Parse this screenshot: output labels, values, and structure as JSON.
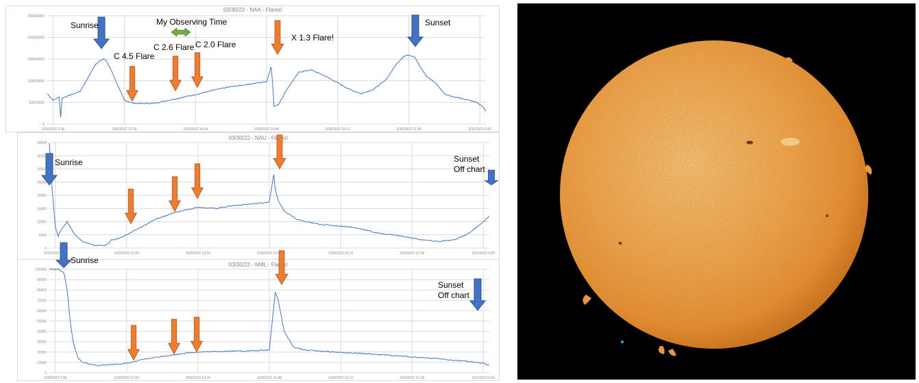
{
  "chart_data": [
    {
      "type": "line",
      "title": "03/30/22 - NAA - Flares!",
      "x_ticks": [
        "3/30/2022 9:36",
        "3/30/2022 12:00",
        "3/30/2022 14:24",
        "3/30/2022 16:48",
        "3/30/2022 19:12",
        "3/30/2022 21:36",
        "3/31/2022 0:00"
      ],
      "y_ticks": [
        "0",
        "50000000",
        "100000000",
        "150000000",
        "200000000",
        "250000000"
      ],
      "ylim": [
        0,
        250000000
      ],
      "xlim": [
        9.4,
        24.2
      ],
      "grid": true,
      "series": [
        {
          "color": "#4472c4",
          "x": [
            9.4,
            9.6,
            9.8,
            9.85,
            9.9,
            10.1,
            10.5,
            10.8,
            11.0,
            11.2,
            11.3,
            11.4,
            11.6,
            11.8,
            12.0,
            12.3,
            12.6,
            13.0,
            13.5,
            14.0,
            14.4,
            15.0,
            15.5,
            16.0,
            16.5,
            16.8,
            16.95,
            17.0,
            17.05,
            17.2,
            17.5,
            17.9,
            18.3,
            18.8,
            19.2,
            19.6,
            20.0,
            20.4,
            20.8,
            21.0,
            21.2,
            21.4,
            21.6,
            21.8,
            22.0,
            22.2,
            22.5,
            22.8,
            23.0,
            23.3,
            23.6,
            23.9,
            24.1,
            24.2
          ],
          "y": [
            70000000,
            55000000,
            62000000,
            15000000,
            60000000,
            65000000,
            75000000,
            110000000,
            135000000,
            148000000,
            150000000,
            145000000,
            118000000,
            85000000,
            55000000,
            48000000,
            47000000,
            48000000,
            55000000,
            62000000,
            68000000,
            78000000,
            85000000,
            90000000,
            95000000,
            98000000,
            132000000,
            100000000,
            40000000,
            45000000,
            82000000,
            120000000,
            125000000,
            110000000,
            95000000,
            80000000,
            70000000,
            80000000,
            100000000,
            120000000,
            140000000,
            155000000,
            160000000,
            155000000,
            130000000,
            110000000,
            95000000,
            70000000,
            65000000,
            60000000,
            55000000,
            50000000,
            40000000,
            30000000
          ]
        }
      ],
      "annotations": [
        {
          "text": "Sunrise"
        },
        {
          "text": "My Observing Time"
        },
        {
          "text": "C 4.5 Flare"
        },
        {
          "text": "C 2.6 Flare"
        },
        {
          "text": "C 2.0 Flare"
        },
        {
          "text": "X 1.3 Flare!"
        },
        {
          "text": "Sunset"
        }
      ]
    },
    {
      "type": "line",
      "title": "03/30/22 - NAU - Flares!",
      "x_ticks": [
        "3/30/2022 9:36",
        "3/30/2022 12:00",
        "3/30/2022 14:24",
        "3/30/2022 16:48",
        "3/30/2022 19:12",
        "3/30/2022 21:36",
        "3/31/2022 0:00"
      ],
      "y_ticks": [
        "0",
        "5000",
        "10000",
        "15000",
        "20000",
        "25000",
        "30000",
        "35000",
        "40000"
      ],
      "ylim": [
        0,
        40000
      ],
      "xlim": [
        9.4,
        24.2
      ],
      "grid": true,
      "series": [
        {
          "color": "#4472c4",
          "x": [
            9.4,
            9.5,
            9.6,
            9.7,
            9.8,
            10.0,
            10.2,
            10.5,
            10.9,
            11.3,
            11.5,
            11.7,
            12.0,
            12.5,
            13.0,
            13.5,
            14.0,
            14.4,
            15.0,
            15.5,
            16.0,
            16.5,
            16.8,
            16.95,
            17.0,
            17.1,
            17.3,
            17.7,
            18.0,
            18.5,
            19.0,
            19.5,
            20.0,
            20.5,
            21.0,
            21.5,
            22.0,
            22.5,
            23.0,
            23.5,
            24.0,
            24.2
          ],
          "y": [
            40000,
            22000,
            8000,
            4500,
            7000,
            10000,
            6000,
            2500,
            1000,
            1000,
            3000,
            3500,
            5000,
            8000,
            11000,
            13000,
            14500,
            15500,
            15000,
            16000,
            16500,
            17000,
            17500,
            28000,
            22000,
            18000,
            14000,
            11000,
            10000,
            9000,
            8500,
            8000,
            7000,
            5500,
            5000,
            4000,
            3000,
            2500,
            3000,
            5500,
            10000,
            12000
          ]
        }
      ],
      "annotations": [
        {
          "text": "Sunrise"
        },
        {
          "text": "Sunset Off chart"
        }
      ]
    },
    {
      "type": "line",
      "title": "03/30/22 - NML - Flares!",
      "x_ticks": [
        "3/30/2022 9:36",
        "3/30/2022 12:00",
        "3/30/2022 14:24",
        "3/30/2022 16:48",
        "3/30/2022 19:12",
        "3/30/2022 21:36",
        "3/31/2022 0:00"
      ],
      "y_ticks": [
        "0",
        "10000",
        "20000",
        "30000",
        "40000",
        "50000",
        "60000",
        "70000",
        "80000",
        "90000",
        "100000"
      ],
      "ylim": [
        0,
        100000
      ],
      "xlim": [
        9.4,
        24.2
      ],
      "grid": true,
      "series": [
        {
          "color": "#4472c4",
          "x": [
            9.4,
            9.7,
            9.9,
            10.0,
            10.1,
            10.2,
            10.35,
            10.5,
            11.0,
            11.5,
            12.0,
            12.3,
            12.6,
            13.0,
            13.5,
            14.0,
            14.4,
            15.0,
            15.5,
            16.0,
            16.5,
            16.8,
            17.0,
            17.1,
            17.3,
            17.6,
            18.0,
            18.5,
            19.0,
            19.5,
            20.0,
            20.5,
            21.0,
            21.5,
            22.0,
            22.5,
            23.0,
            23.5,
            24.0,
            24.2
          ],
          "y": [
            100000,
            100000,
            96000,
            80000,
            50000,
            30000,
            15000,
            10000,
            7000,
            8000,
            9000,
            11000,
            13000,
            15000,
            17000,
            19000,
            20000,
            20500,
            21000,
            21000,
            21500,
            22000,
            78000,
            70000,
            40000,
            25000,
            22000,
            21000,
            20000,
            19000,
            18500,
            17500,
            16500,
            15500,
            14500,
            13500,
            12000,
            11000,
            9000,
            7000
          ]
        }
      ],
      "annotations": [
        {
          "text": "Sunrise"
        },
        {
          "text": "Sunset Off chart"
        }
      ]
    }
  ],
  "colors": {
    "series": "#4472c4",
    "grid": "#d9d9d9",
    "sun_arrow": "#4472c4",
    "flare_arrow": "#ed7d31",
    "observing_arrow": "#70ad47",
    "sun_disk": "#f0a848",
    "photo_background": "#000000"
  }
}
